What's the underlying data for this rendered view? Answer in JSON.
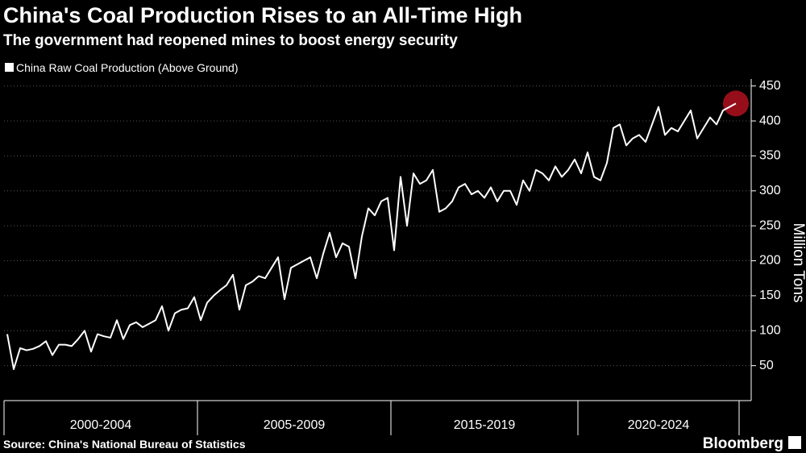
{
  "chart_data": {
    "type": "line",
    "title": "China's Coal Production Rises to an All-Time High",
    "subtitle": "The government had reopened mines to boost energy security",
    "series_name": "China Raw Coal Production (Above Ground)",
    "color": "#ffffff",
    "highlight_color": "#b0101e",
    "y_label": "Million Tons",
    "periods": [
      {
        "label": "2000-2004",
        "values": [
          95,
          45,
          75,
          72,
          74,
          78,
          85,
          65,
          80,
          80,
          78,
          88,
          100,
          70,
          95,
          92,
          90,
          115,
          88,
          108,
          112,
          105,
          110,
          115,
          135,
          100,
          125,
          130,
          132,
          148
        ]
      },
      {
        "label": "2005-2009",
        "values": [
          115,
          140,
          150,
          158,
          165,
          180,
          130,
          165,
          170,
          178,
          175,
          190,
          205,
          145,
          190,
          195,
          200,
          205,
          175,
          210,
          240,
          205,
          225,
          220,
          175,
          235,
          275,
          265,
          285,
          290
        ]
      },
      {
        "label": "2015-2019",
        "values": [
          215,
          320,
          250,
          325,
          310,
          315,
          330,
          270,
          275,
          285,
          305,
          310,
          295,
          300,
          290,
          305,
          285,
          300,
          300,
          280,
          315,
          300,
          330,
          325,
          315,
          335,
          320,
          330,
          345
        ]
      },
      {
        "label": "2020-2024",
        "values": [
          325,
          355,
          320,
          315,
          340,
          390,
          395,
          365,
          375,
          380,
          370,
          395,
          420,
          380,
          390,
          385,
          400,
          415,
          375,
          390,
          405,
          395,
          415,
          420,
          425
        ]
      }
    ],
    "ylim": [
      0,
      460
    ],
    "yticks": [
      50,
      100,
      150,
      200,
      250,
      300,
      350,
      400,
      450
    ],
    "grid": true,
    "source": "Source: China's National Bureau of Statistics",
    "brand": "Bloomberg"
  }
}
